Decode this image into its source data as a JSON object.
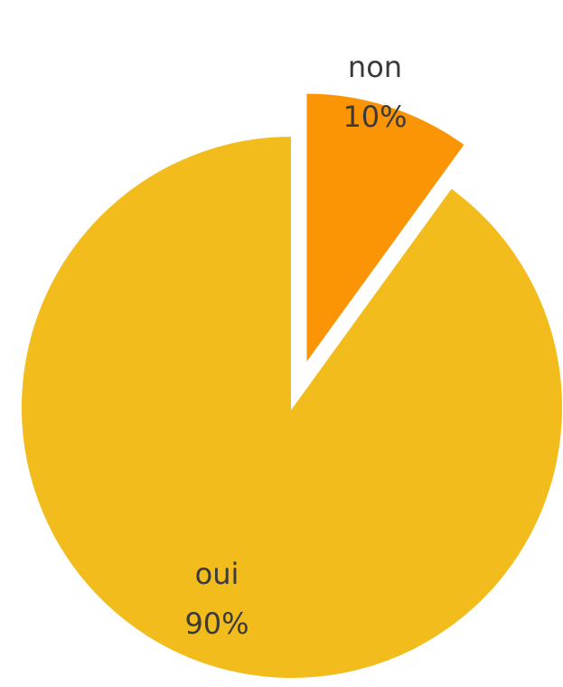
{
  "chart_data": {
    "type": "pie",
    "title": "",
    "slices": [
      {
        "label": "oui",
        "value": 90,
        "percent_label": "90%",
        "color": "#F2BC1D"
      },
      {
        "label": "non",
        "value": 10,
        "percent_label": "10%",
        "color": "#FB9506"
      }
    ],
    "exploded_slice": "non",
    "legend": "none",
    "data_labels": "inside"
  }
}
